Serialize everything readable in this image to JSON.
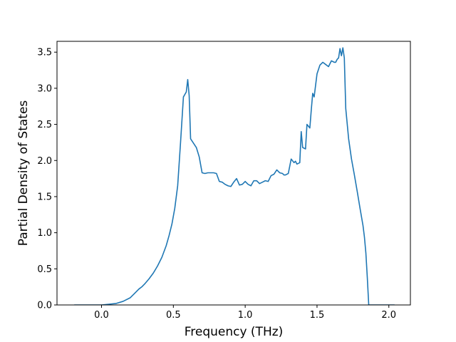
{
  "chart_data": {
    "type": "line",
    "title": "",
    "xlabel": "Frequency (THz)",
    "ylabel": "Partial Density of States",
    "xlim": [
      -0.31,
      2.15
    ],
    "ylim": [
      0,
      3.65
    ],
    "xticks": [
      0.0,
      0.5,
      1.0,
      1.5,
      2.0
    ],
    "xtick_labels": [
      "0.0",
      "0.5",
      "1.0",
      "1.5",
      "2.0"
    ],
    "yticks": [
      0.0,
      0.5,
      1.0,
      1.5,
      2.0,
      2.5,
      3.0,
      3.5
    ],
    "ytick_labels": [
      "0.0",
      "0.5",
      "1.0",
      "1.5",
      "2.0",
      "2.5",
      "3.0",
      "3.5"
    ],
    "grid": false,
    "legend": "none",
    "series": [
      {
        "color": "#1f77b4",
        "x": [
          -0.19,
          0.0,
          0.05,
          0.1,
          0.15,
          0.2,
          0.23,
          0.26,
          0.28,
          0.3,
          0.33,
          0.36,
          0.39,
          0.42,
          0.45,
          0.47,
          0.49,
          0.51,
          0.53,
          0.55,
          0.57,
          0.59,
          0.6,
          0.61,
          0.62,
          0.64,
          0.66,
          0.68,
          0.7,
          0.72,
          0.74,
          0.76,
          0.78,
          0.8,
          0.82,
          0.84,
          0.86,
          0.88,
          0.9,
          0.92,
          0.94,
          0.96,
          0.98,
          1.0,
          1.02,
          1.04,
          1.06,
          1.08,
          1.1,
          1.12,
          1.14,
          1.16,
          1.18,
          1.2,
          1.22,
          1.24,
          1.26,
          1.27,
          1.28,
          1.3,
          1.32,
          1.34,
          1.35,
          1.36,
          1.38,
          1.39,
          1.4,
          1.42,
          1.43,
          1.45,
          1.46,
          1.47,
          1.48,
          1.5,
          1.52,
          1.54,
          1.56,
          1.58,
          1.6,
          1.62,
          1.63,
          1.64,
          1.65,
          1.66,
          1.67,
          1.68,
          1.69,
          1.7,
          1.72,
          1.74,
          1.76,
          1.78,
          1.8,
          1.82,
          1.83,
          1.84,
          1.85,
          1.86,
          2.04
        ],
        "y": [
          0.0,
          0.0,
          0.01,
          0.02,
          0.05,
          0.1,
          0.16,
          0.22,
          0.25,
          0.29,
          0.36,
          0.44,
          0.54,
          0.66,
          0.82,
          0.96,
          1.12,
          1.34,
          1.65,
          2.25,
          2.88,
          2.95,
          3.12,
          2.9,
          2.3,
          2.24,
          2.18,
          2.05,
          1.83,
          1.82,
          1.83,
          1.83,
          1.83,
          1.82,
          1.71,
          1.7,
          1.67,
          1.65,
          1.64,
          1.7,
          1.75,
          1.66,
          1.67,
          1.71,
          1.67,
          1.65,
          1.72,
          1.72,
          1.68,
          1.7,
          1.72,
          1.71,
          1.79,
          1.81,
          1.87,
          1.83,
          1.82,
          1.8,
          1.8,
          1.82,
          2.02,
          1.97,
          1.99,
          1.95,
          1.97,
          2.4,
          2.18,
          2.16,
          2.5,
          2.45,
          2.7,
          2.93,
          2.88,
          3.2,
          3.32,
          3.36,
          3.33,
          3.3,
          3.38,
          3.36,
          3.36,
          3.4,
          3.42,
          3.55,
          3.45,
          3.56,
          3.42,
          2.72,
          2.3,
          2.02,
          1.8,
          1.57,
          1.33,
          1.1,
          0.94,
          0.72,
          0.38,
          0.0,
          0.0
        ]
      }
    ]
  }
}
